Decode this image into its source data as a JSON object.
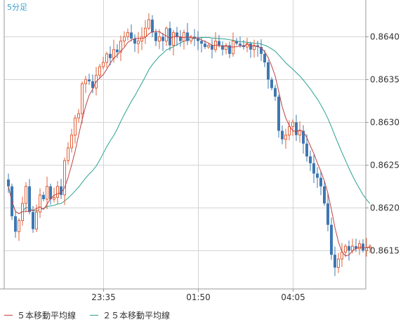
{
  "chart_data": {
    "type": "candlestick",
    "timeframe_label": "5分足",
    "y_ticks": [
      "0.8640",
      "0.8635",
      "0.8630",
      "0.8625",
      "0.8620",
      "0.8615"
    ],
    "y_tick_values": [
      0.864,
      0.8635,
      0.863,
      0.8625,
      0.862,
      0.8615
    ],
    "ylim": [
      0.86105,
      0.86443
    ],
    "x_ticks": [
      "23:35",
      "01:50",
      "04:05"
    ],
    "x_tick_index": [
      27,
      54,
      81
    ],
    "colors": {
      "up": "#e0603a",
      "down": "#3d78b2",
      "ma5": "#c04040",
      "ma25": "#2aa28e",
      "grid": "#d4d4d4",
      "axis": "#999999"
    },
    "legend": [
      {
        "label": "５本移動平均線",
        "color": "#c04040"
      },
      {
        "label": "２５本移動平均線",
        "color": "#2aa28e"
      }
    ],
    "closes": [
      0.86225,
      0.8619,
      0.86172,
      0.86185,
      0.86205,
      0.86225,
      0.86195,
      0.86175,
      0.86195,
      0.86215,
      0.8621,
      0.86225,
      0.8621,
      0.86212,
      0.86225,
      0.86215,
      0.86255,
      0.8627,
      0.86285,
      0.86305,
      0.8631,
      0.86345,
      0.8635,
      0.86348,
      0.8634,
      0.86355,
      0.86365,
      0.8637,
      0.8638,
      0.86375,
      0.86385,
      0.86382,
      0.86395,
      0.864,
      0.86405,
      0.86398,
      0.86392,
      0.86395,
      0.864,
      0.8641,
      0.8642,
      0.86405,
      0.86395,
      0.864,
      0.86395,
      0.8641,
      0.8639,
      0.86405,
      0.864,
      0.86395,
      0.86405,
      0.86395,
      0.864,
      0.86398,
      0.86395,
      0.86392,
      0.86388,
      0.8639,
      0.86385,
      0.86395,
      0.8639,
      0.86385,
      0.8639,
      0.8638,
      0.86395,
      0.86392,
      0.8639,
      0.86388,
      0.86392,
      0.86385,
      0.8639,
      0.86388,
      0.8638,
      0.8637,
      0.8635,
      0.8634,
      0.8633,
      0.8629,
      0.8628,
      0.86285,
      0.86295,
      0.863,
      0.86285,
      0.8629,
      0.86275,
      0.8626,
      0.86252,
      0.8624,
      0.86235,
      0.86225,
      0.86205,
      0.8618,
      0.86145,
      0.8613,
      0.8614,
      0.86148,
      0.86155,
      0.8615,
      0.86155,
      0.86152,
      0.86158,
      0.8615,
      0.86153,
      0.86155
    ]
  }
}
